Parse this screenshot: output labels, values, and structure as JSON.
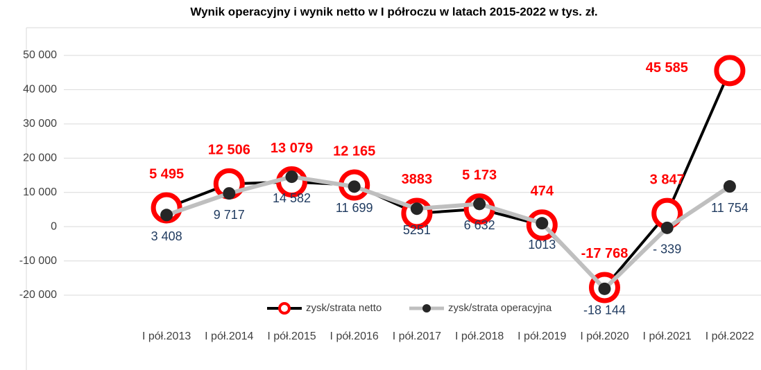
{
  "chart_data": {
    "type": "line",
    "title": "Wynik operacyjny i wynik netto w I półroczu w latach 2015-2022 w tys. zł.",
    "categories": [
      "I pół.2013",
      "I pół.2014",
      "I pół.2015",
      "I pół.2016",
      "I pół.2017",
      "I pół.2018",
      "I pół.2019",
      "I pół.2020",
      "I pół.2021",
      "I pół.2022"
    ],
    "series": [
      {
        "name": "zysk/strata netto",
        "color": "#000000",
        "marker_color": "#ff0000",
        "values": [
          5495,
          12506,
          13079,
          12165,
          3883,
          5173,
          474,
          -17768,
          3847,
          45585
        ],
        "value_labels": [
          "5 495",
          "12 506",
          "13 079",
          "12 165",
          "3883",
          "5 173",
          "474",
          "-17 768",
          "3 847",
          "45 585"
        ]
      },
      {
        "name": "zysk/strata operacyjna",
        "color": "#bfbfbf",
        "marker_color": "#262626",
        "values": [
          3408,
          9717,
          14582,
          11699,
          5251,
          6632,
          1013,
          -18144,
          -339,
          11754
        ],
        "value_labels": [
          "3 408",
          "9 717",
          "14 582",
          "11 699",
          "5251",
          "6 632",
          "1013",
          "-18 144",
          "- 339",
          "11 754"
        ]
      }
    ],
    "ylim": [
      -20000,
      50000
    ],
    "yticks": [
      {
        "value": -20000,
        "label": "-20 000"
      },
      {
        "value": -10000,
        "label": "-10 000"
      },
      0,
      {
        "value": 10000,
        "label": "10 000"
      },
      {
        "value": 20000,
        "label": "20 000"
      },
      {
        "value": 30000,
        "label": "30 000"
      },
      {
        "value": 40000,
        "label": "40 000"
      },
      {
        "value": 50000,
        "label": "50 000"
      }
    ],
    "grid": true,
    "legend": "bottom"
  }
}
